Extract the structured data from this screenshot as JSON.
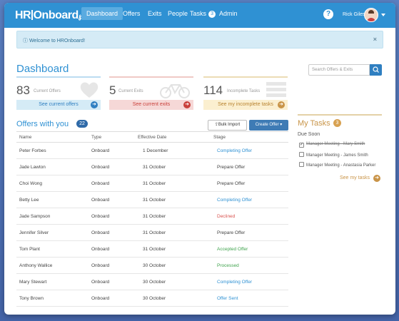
{
  "nav": {
    "logo_left": "HR",
    "logo_right": "Onboard",
    "items": [
      "Dashboard",
      "Offers",
      "Exits",
      "People",
      "Tasks",
      "Admin"
    ],
    "tasks_badge": "3",
    "help": "?",
    "user_name": "Rick Giles"
  },
  "alert": {
    "text": "Welcome to HROnboard!",
    "close": "×"
  },
  "dashboard": {
    "title": "Dashboard",
    "search_placeholder": "Search Offers & Exits"
  },
  "cards": [
    {
      "num": "83",
      "label": "Current Offers",
      "link": "See current offers",
      "color": "#4aa3df"
    },
    {
      "num": "5",
      "label": "Current Exits",
      "link": "See current exits",
      "color": "#d9534f"
    },
    {
      "num": "114",
      "label": "Incomplete Tasks",
      "link": "See my incomplete tasks",
      "color": "#d8a252"
    }
  ],
  "offers": {
    "title": "Offers with you",
    "count": "22",
    "bulk_import": "Bulk Import",
    "create_offer": "Create Offer",
    "headers": [
      "Name",
      "Type",
      "Effective Date",
      "Stage"
    ],
    "rows": [
      {
        "name": "Peter Forbes",
        "type": "Onboard",
        "date": "1 December",
        "stage": "Completing Offer",
        "stage_color": "blue"
      },
      {
        "name": "Jade Lawton",
        "type": "Onboard",
        "date": "31 October",
        "stage": "Prepare Offer",
        "stage_color": "plain"
      },
      {
        "name": "Choi Wong",
        "type": "Onboard",
        "date": "31 October",
        "stage": "Prepare Offer",
        "stage_color": "plain"
      },
      {
        "name": "Betty Lee",
        "type": "Onboard",
        "date": "31 October",
        "stage": "Completing Offer",
        "stage_color": "blue"
      },
      {
        "name": "Jade Sampson",
        "type": "Onboard",
        "date": "31 October",
        "stage": "Declined",
        "stage_color": "red"
      },
      {
        "name": "Jennifer Silver",
        "type": "Onboard",
        "date": "31 October",
        "stage": "Prepare Offer",
        "stage_color": "plain"
      },
      {
        "name": "Tom Plant",
        "type": "Onboard",
        "date": "31 October",
        "stage": "Accepted Offer",
        "stage_color": "green"
      },
      {
        "name": "Anthony Wallice",
        "type": "Onboard",
        "date": "30 October",
        "stage": "Processed",
        "stage_color": "green"
      },
      {
        "name": "Mary Stewart",
        "type": "Onboard",
        "date": "30 October",
        "stage": "Completing Offer",
        "stage_color": "blue"
      },
      {
        "name": "Tony Brown",
        "type": "Onboard",
        "date": "30 October",
        "stage": "Offer Sent",
        "stage_color": "blue"
      }
    ]
  },
  "my_tasks": {
    "title": "My Tasks",
    "count": "3",
    "due_soon": "Due Soon",
    "items": [
      {
        "text": "Manager Meeting - Mary Smith",
        "done": true
      },
      {
        "text": "Manager Meeting - James Smith",
        "done": false
      },
      {
        "text": "Manager Meeting - Anastasia Parker",
        "done": false
      }
    ],
    "see_link": "See my tasks"
  },
  "icons": {
    "search": "search-icon",
    "arrow": "arrow-right-icon",
    "heart": "heart-icon",
    "bike": "bicycle-icon",
    "list": "list-icon",
    "info": "info-icon",
    "upload": "upload-icon"
  }
}
